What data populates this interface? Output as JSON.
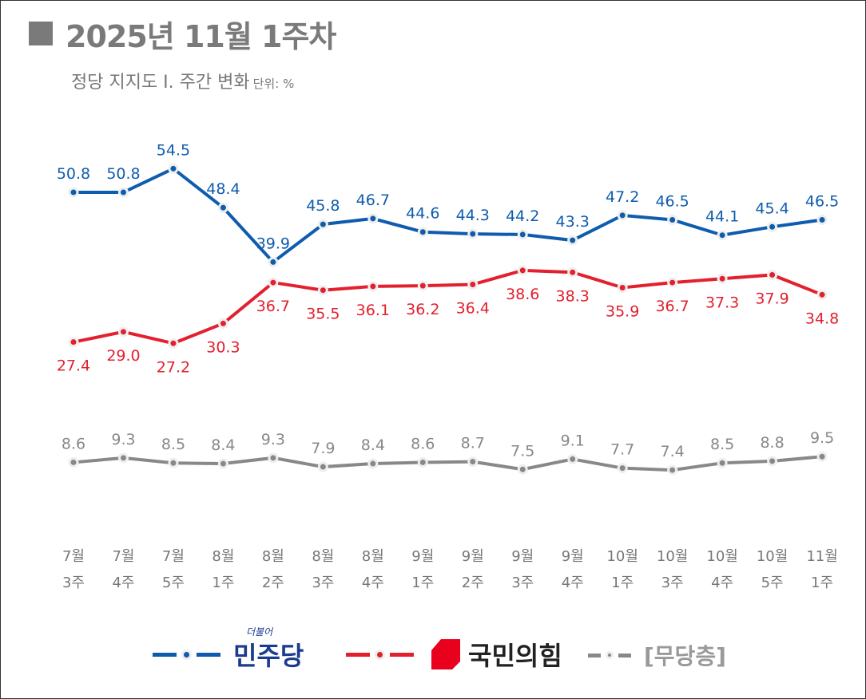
{
  "header": {
    "title": "2025년 11월 1주차",
    "subtitle": "정당 지지도 Ⅰ. 주간 변화",
    "unit": "단위: %"
  },
  "chart_data": {
    "type": "line",
    "categories": [
      "7월 3주",
      "7월 4주",
      "7월 5주",
      "8월 1주",
      "8월 2주",
      "8월 3주",
      "8월 4주",
      "9월 1주",
      "9월 2주",
      "9월 3주",
      "9월 4주",
      "10월 1주",
      "10월 3주",
      "10월 4주",
      "10월 5주",
      "11월 1주"
    ],
    "series": [
      {
        "name": "더불어민주당",
        "color": "#0f5cae",
        "values": [
          50.8,
          50.8,
          54.5,
          48.4,
          39.9,
          45.8,
          46.7,
          44.6,
          44.3,
          44.2,
          43.3,
          47.2,
          46.5,
          44.1,
          45.4,
          46.5
        ]
      },
      {
        "name": "국민의힘",
        "color": "#e3202e",
        "values": [
          27.4,
          29.0,
          27.2,
          30.3,
          36.7,
          35.5,
          36.1,
          36.2,
          36.4,
          38.6,
          38.3,
          35.9,
          36.7,
          37.3,
          37.9,
          34.8
        ]
      },
      {
        "name": "[무당층]",
        "color": "#888888",
        "values": [
          8.6,
          9.3,
          8.5,
          8.4,
          9.3,
          7.9,
          8.4,
          8.6,
          8.7,
          7.5,
          9.1,
          7.7,
          7.4,
          8.5,
          8.8,
          9.5
        ]
      }
    ],
    "legend_position": "bottom",
    "grid": false
  },
  "legend": {
    "dem_small": "더불어",
    "dem": "민주당",
    "ppp": "국민의힘",
    "none": "[무당층]"
  }
}
